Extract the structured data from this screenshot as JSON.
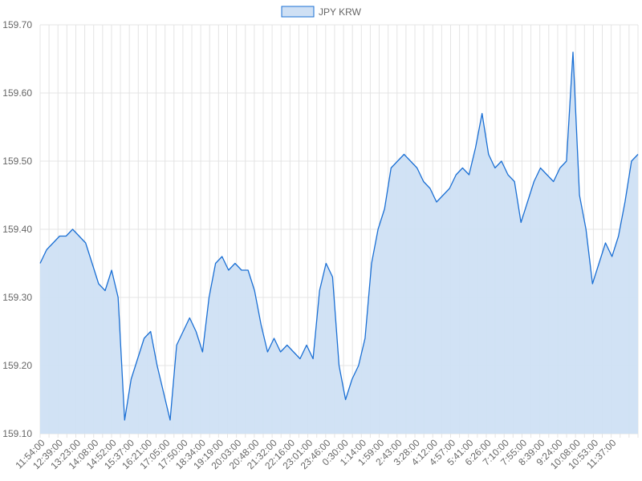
{
  "chart_data": {
    "type": "area",
    "legend": {
      "position": "top",
      "label": "JPY KRW"
    },
    "colors": {
      "line": "#1a6fd4",
      "fill": "#cfe0f4",
      "grid": "#e4e4e4",
      "text": "#666666"
    },
    "grid": true,
    "ylim": [
      159.1,
      159.7
    ],
    "y_ticks": [
      "159.10",
      "159.20",
      "159.30",
      "159.40",
      "159.50",
      "159.60",
      "159.70"
    ],
    "x_tick_labels": [
      "11:54:00",
      "12:39:00",
      "13:23:00",
      "14:08:00",
      "14:52:00",
      "15:37:00",
      "16:21:00",
      "17:05:00",
      "17:50:00",
      "18:34:00",
      "19:19:00",
      "20:03:00",
      "20:48:00",
      "21:32:00",
      "22:16:00",
      "23:01:00",
      "23:46:00",
      "0:30:00",
      "1:14:00",
      "1:59:00",
      "2:43:00",
      "3:28:00",
      "4:12:00",
      "4:57:00",
      "5:41:00",
      "6:26:00",
      "7:10:00",
      "7:55:00",
      "8:39:00",
      "9:24:00",
      "10:08:00",
      "10:53:00",
      "11:37:00"
    ],
    "series": [
      {
        "name": "JPY KRW",
        "values": [
          159.35,
          159.37,
          159.38,
          159.39,
          159.39,
          159.4,
          159.39,
          159.38,
          159.35,
          159.32,
          159.31,
          159.34,
          159.3,
          159.12,
          159.18,
          159.21,
          159.24,
          159.25,
          159.2,
          159.16,
          159.12,
          159.23,
          159.25,
          159.27,
          159.25,
          159.22,
          159.3,
          159.35,
          159.36,
          159.34,
          159.35,
          159.34,
          159.34,
          159.31,
          159.26,
          159.22,
          159.24,
          159.22,
          159.23,
          159.22,
          159.21,
          159.23,
          159.21,
          159.31,
          159.35,
          159.33,
          159.2,
          159.15,
          159.18,
          159.2,
          159.24,
          159.35,
          159.4,
          159.43,
          159.49,
          159.5,
          159.51,
          159.5,
          159.49,
          159.47,
          159.46,
          159.44,
          159.45,
          159.46,
          159.48,
          159.49,
          159.48,
          159.52,
          159.57,
          159.51,
          159.49,
          159.5,
          159.48,
          159.47,
          159.41,
          159.44,
          159.47,
          159.49,
          159.48,
          159.47,
          159.49,
          159.5,
          159.66,
          159.45,
          159.4,
          159.32,
          159.35,
          159.38,
          159.36,
          159.39,
          159.44,
          159.5,
          159.51
        ]
      }
    ]
  }
}
